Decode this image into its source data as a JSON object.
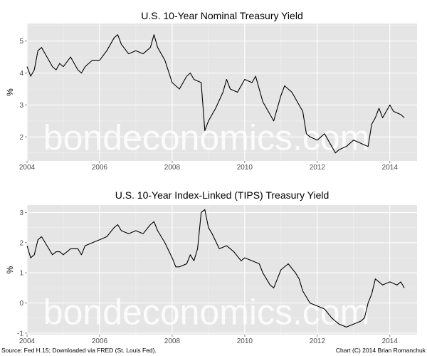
{
  "chart_data": [
    {
      "type": "line",
      "title": "U.S. 10-Year Nominal Treasury Yield",
      "xlabel": "",
      "ylabel": "%",
      "xlim": [
        2004.0,
        2014.75
      ],
      "ylim": [
        1.25,
        5.55
      ],
      "x_ticks": [
        2004,
        2006,
        2008,
        2010,
        2012,
        2014
      ],
      "x_tick_labels": [
        "2004",
        "2006",
        "2008",
        "2010",
        "2012",
        "2014"
      ],
      "y_ticks": [
        2,
        3,
        4,
        5
      ],
      "y_tick_labels": [
        "2",
        "3",
        "4",
        "5"
      ],
      "grid": true,
      "watermark": "bondeconomics.com",
      "series": [
        {
          "x": [
            2004.0,
            2004.1,
            2004.2,
            2004.3,
            2004.4,
            2004.5,
            2004.6,
            2004.7,
            2004.8,
            2004.9,
            2005.0,
            2005.2,
            2005.4,
            2005.5,
            2005.6,
            2005.8,
            2006.0,
            2006.2,
            2006.4,
            2006.5,
            2006.6,
            2006.8,
            2007.0,
            2007.2,
            2007.4,
            2007.5,
            2007.6,
            2007.8,
            2008.0,
            2008.2,
            2008.4,
            2008.5,
            2008.6,
            2008.8,
            2008.9,
            2009.0,
            2009.2,
            2009.4,
            2009.5,
            2009.6,
            2009.8,
            2010.0,
            2010.2,
            2010.3,
            2010.5,
            2010.7,
            2010.8,
            2011.0,
            2011.1,
            2011.3,
            2011.5,
            2011.6,
            2011.7,
            2011.8,
            2012.0,
            2012.2,
            2012.4,
            2012.5,
            2012.6,
            2012.8,
            2013.0,
            2013.2,
            2013.4,
            2013.5,
            2013.6,
            2013.7,
            2013.8,
            2014.0,
            2014.1,
            2014.3,
            2014.4
          ],
          "y": [
            4.2,
            3.9,
            4.1,
            4.7,
            4.8,
            4.6,
            4.4,
            4.2,
            4.1,
            4.3,
            4.2,
            4.5,
            4.1,
            4.0,
            4.2,
            4.4,
            4.4,
            4.7,
            5.1,
            5.2,
            4.9,
            4.6,
            4.7,
            4.6,
            4.8,
            5.2,
            4.8,
            4.4,
            3.7,
            3.5,
            3.9,
            4.0,
            3.8,
            3.7,
            2.2,
            2.5,
            2.9,
            3.4,
            3.8,
            3.5,
            3.4,
            3.8,
            3.7,
            3.9,
            3.1,
            2.7,
            2.5,
            3.3,
            3.6,
            3.4,
            3.0,
            2.8,
            2.1,
            2.0,
            1.9,
            2.1,
            1.7,
            1.5,
            1.6,
            1.7,
            1.9,
            1.8,
            1.7,
            2.4,
            2.6,
            2.9,
            2.6,
            3.0,
            2.8,
            2.7,
            2.6
          ]
        }
      ]
    },
    {
      "type": "line",
      "title": "U.S. 10-Year Index-Linked (TIPS) Treasury Yield",
      "xlabel": "",
      "ylabel": "%",
      "xlim": [
        2004.0,
        2014.75
      ],
      "ylim": [
        -1.05,
        3.25
      ],
      "x_ticks": [
        2004,
        2006,
        2008,
        2010,
        2012,
        2014
      ],
      "x_tick_labels": [
        "2004",
        "2006",
        "2008",
        "2010",
        "2012",
        "2014"
      ],
      "y_ticks": [
        -1,
        0,
        1,
        2,
        3
      ],
      "y_tick_labels": [
        "-1",
        "0",
        "1",
        "2",
        "3"
      ],
      "grid": true,
      "watermark": "bondeconomics.com",
      "series": [
        {
          "x": [
            2004.0,
            2004.1,
            2004.2,
            2004.3,
            2004.4,
            2004.5,
            2004.6,
            2004.7,
            2004.8,
            2004.9,
            2005.0,
            2005.2,
            2005.4,
            2005.5,
            2005.6,
            2005.8,
            2006.0,
            2006.2,
            2006.4,
            2006.5,
            2006.6,
            2006.8,
            2007.0,
            2007.2,
            2007.4,
            2007.5,
            2007.6,
            2007.8,
            2008.0,
            2008.1,
            2008.2,
            2008.4,
            2008.5,
            2008.6,
            2008.7,
            2008.8,
            2008.9,
            2009.0,
            2009.1,
            2009.3,
            2009.5,
            2009.7,
            2009.9,
            2010.0,
            2010.2,
            2010.4,
            2010.5,
            2010.7,
            2010.8,
            2011.0,
            2011.2,
            2011.4,
            2011.5,
            2011.6,
            2011.8,
            2012.0,
            2012.2,
            2012.4,
            2012.5,
            2012.6,
            2012.8,
            2013.0,
            2013.2,
            2013.3,
            2013.4,
            2013.5,
            2013.6,
            2013.8,
            2014.0,
            2014.2,
            2014.3,
            2014.4
          ],
          "y": [
            1.9,
            1.5,
            1.6,
            2.1,
            2.2,
            2.0,
            1.8,
            1.6,
            1.7,
            1.7,
            1.6,
            1.8,
            1.8,
            1.6,
            1.9,
            2.0,
            2.1,
            2.2,
            2.5,
            2.6,
            2.4,
            2.3,
            2.4,
            2.3,
            2.6,
            2.7,
            2.4,
            2.0,
            1.5,
            1.2,
            1.2,
            1.3,
            1.6,
            1.4,
            1.8,
            3.0,
            3.1,
            2.5,
            2.3,
            1.8,
            1.9,
            1.7,
            1.4,
            1.5,
            1.4,
            1.3,
            1.0,
            0.6,
            0.5,
            1.1,
            1.3,
            1.0,
            0.8,
            0.4,
            0.0,
            -0.1,
            -0.2,
            -0.5,
            -0.6,
            -0.7,
            -0.8,
            -0.7,
            -0.6,
            -0.5,
            0.0,
            0.3,
            0.8,
            0.6,
            0.7,
            0.6,
            0.7,
            0.5
          ]
        }
      ]
    }
  ],
  "footer": {
    "source": "Source: Fed H.15; Downloaded via FRED (St. Louis Fed).",
    "credit": "Chart (C) 2014 Brian Romanchuk"
  }
}
